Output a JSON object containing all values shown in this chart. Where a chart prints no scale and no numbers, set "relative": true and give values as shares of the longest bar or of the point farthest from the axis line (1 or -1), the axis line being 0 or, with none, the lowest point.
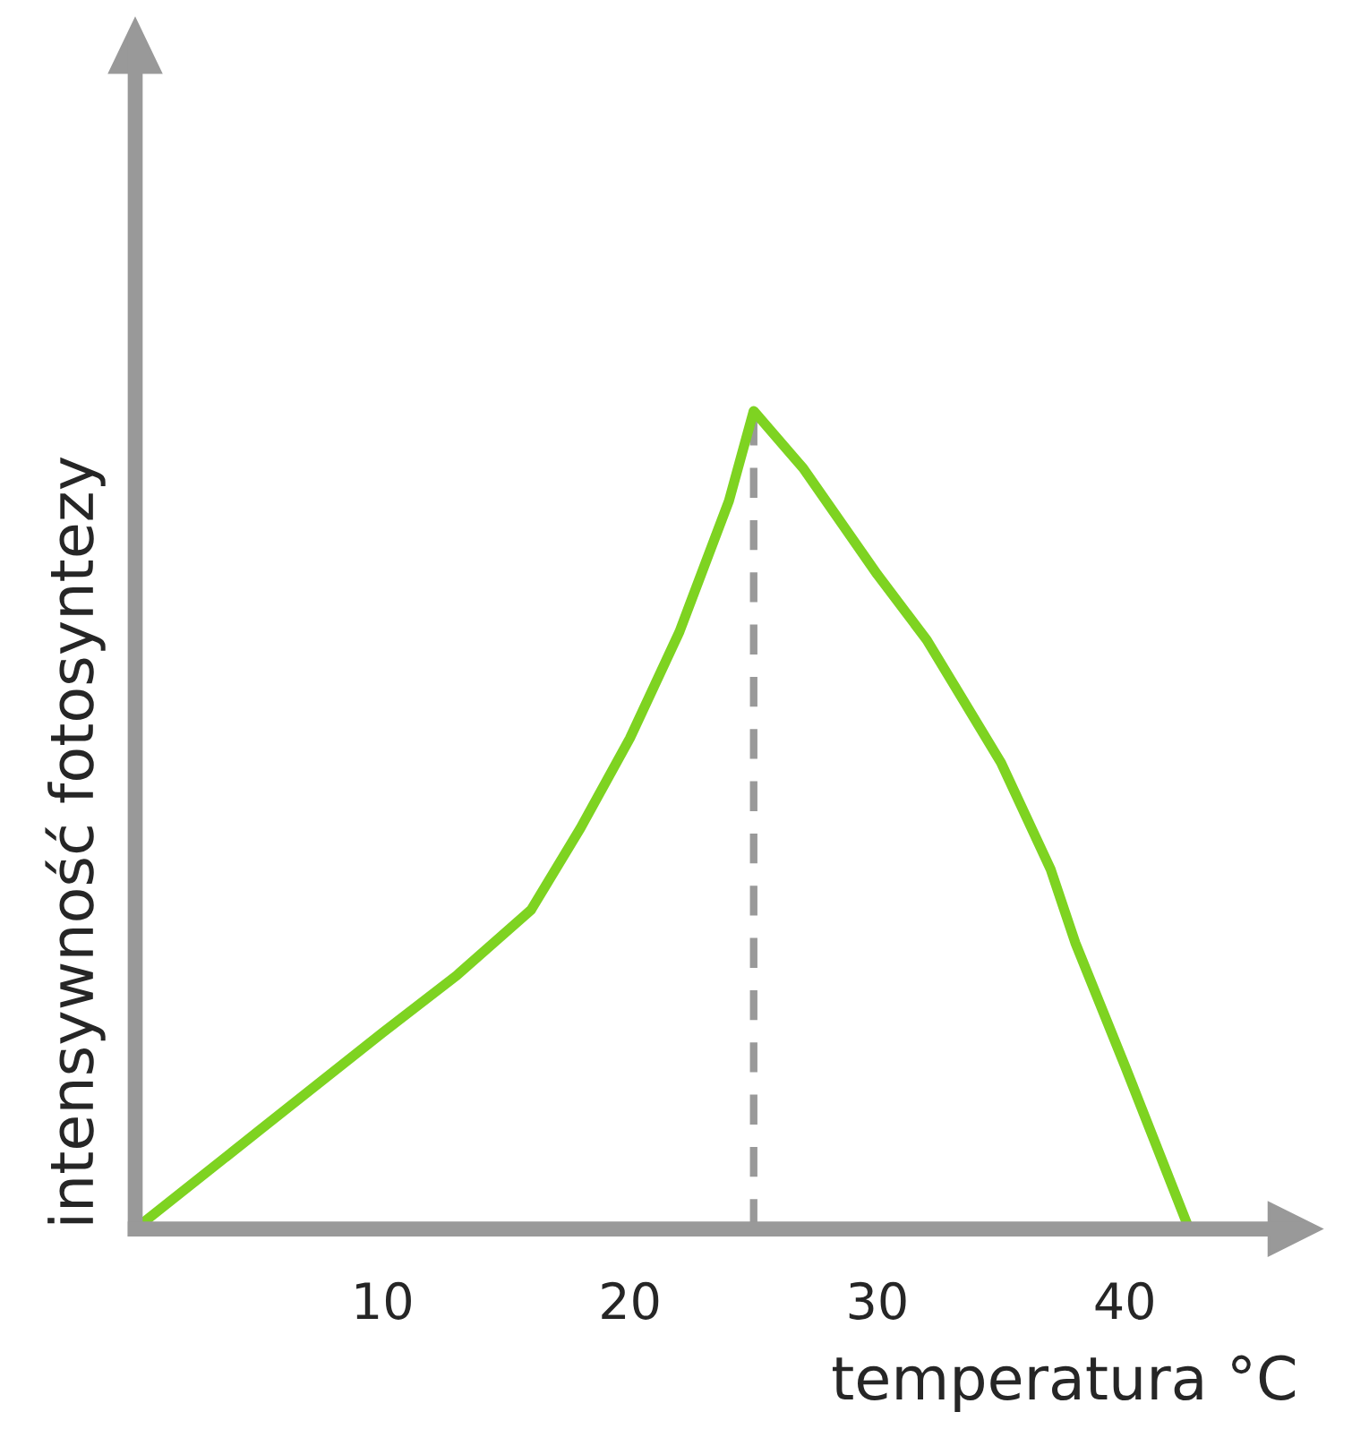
{
  "chart_data": {
    "type": "line",
    "relative": true,
    "xlabel": "temperatura °C",
    "ylabel": "intensywność fotosyntezy",
    "x": [
      0,
      5,
      10,
      13,
      16,
      18,
      20,
      22,
      23,
      24,
      25,
      27,
      30,
      32,
      35,
      37,
      38,
      40,
      42.6
    ],
    "series": [
      {
        "color": "#7ed321",
        "values": [
          0,
          0.12,
          0.24,
          0.31,
          0.39,
          0.49,
          0.6,
          0.73,
          0.81,
          0.89,
          1,
          0.93,
          0.8,
          0.72,
          0.57,
          0.44,
          0.35,
          0.2,
          0
        ]
      }
    ],
    "xlim": [
      0,
      47
    ],
    "xticks": [
      10,
      20,
      30,
      40
    ],
    "ref_lines": [
      {
        "axis": "x",
        "value": 25,
        "color": "#999999",
        "line_style": "dashed"
      }
    ],
    "grid": false,
    "marker": "none",
    "line_style": "solid"
  }
}
